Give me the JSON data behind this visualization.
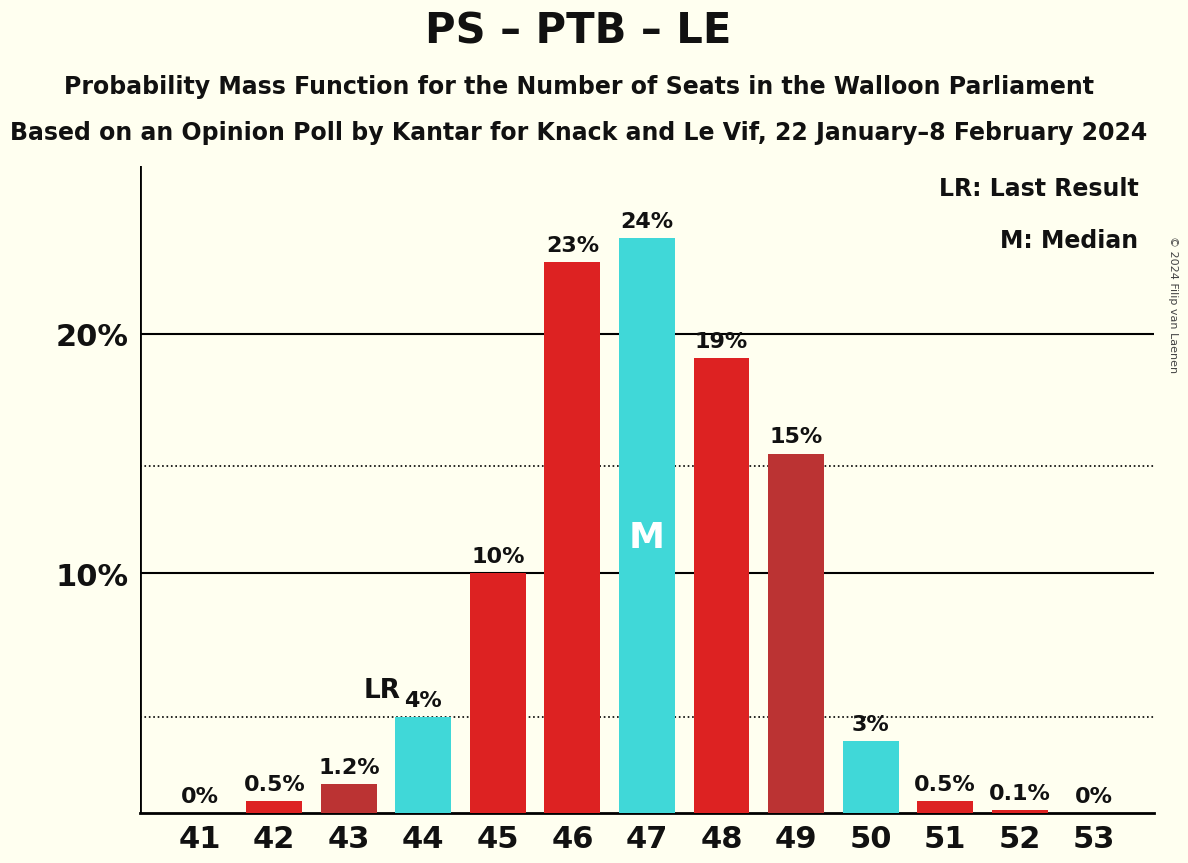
{
  "title": "PS – PTB – LE",
  "subtitle1": "Probability Mass Function for the Number of Seats in the Walloon Parliament",
  "subtitle2": "Based on an Opinion Poll by Kantar for Knack and Le Vif, 22 January–8 February 2024",
  "copyright": "© 2024 Filip van Laenen",
  "seats": [
    41,
    42,
    43,
    44,
    45,
    46,
    47,
    48,
    49,
    50,
    51,
    52,
    53
  ],
  "values": [
    0.0,
    0.5,
    1.2,
    4.0,
    10.0,
    23.0,
    24.0,
    19.0,
    15.0,
    3.0,
    0.5,
    0.1,
    0.0
  ],
  "bar_colors": [
    "#dd2222",
    "#dd2222",
    "#bb3333",
    "#40d8d8",
    "#dd2222",
    "#dd2222",
    "#40d8d8",
    "#dd2222",
    "#bb3333",
    "#40d8d8",
    "#dd2222",
    "#dd2222",
    "#dd2222"
  ],
  "labels": [
    "0%",
    "0.5%",
    "1.2%",
    "4%",
    "10%",
    "23%",
    "24%",
    "19%",
    "15%",
    "3%",
    "0.5%",
    "0.1%",
    "0%"
  ],
  "last_result_seat": 44,
  "median_seat": 47,
  "lr_label": "LR",
  "m_label": "M",
  "legend_lr": "LR: Last Result",
  "legend_m": "M: Median",
  "ylim": [
    0,
    27
  ],
  "dotted_lines": [
    4.0,
    14.5
  ],
  "background_color": "#fffff0",
  "title_fontsize": 30,
  "subtitle_fontsize": 17,
  "axis_tick_fontsize": 22,
  "bar_label_fontsize": 16,
  "legend_fontsize": 17,
  "m_label_fontsize": 26,
  "lr_label_fontsize": 19
}
